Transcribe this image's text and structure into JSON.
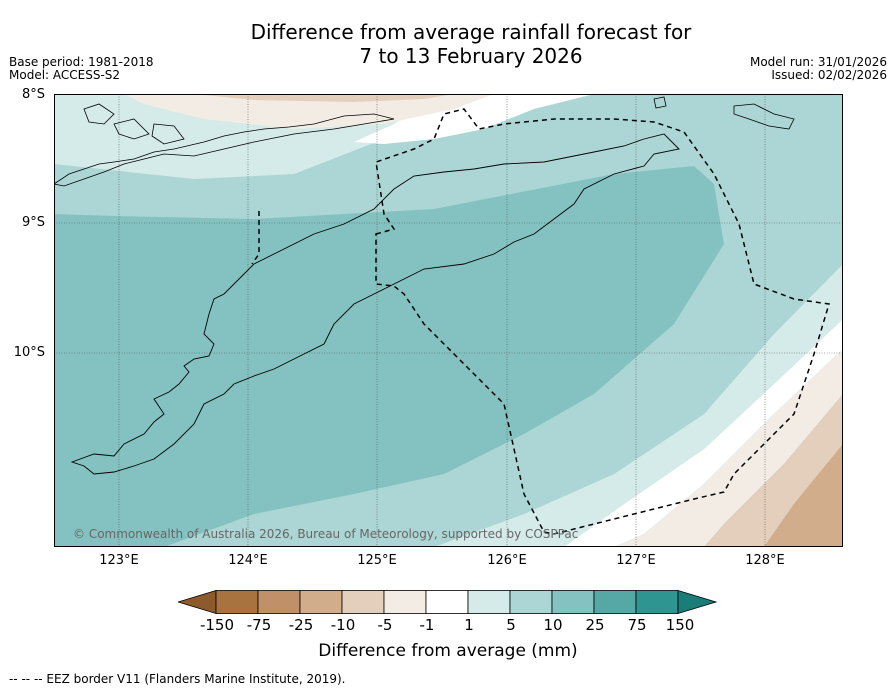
{
  "title": {
    "line1": "Difference from average rainfall forecast for",
    "line2": "7 to 13 February 2026"
  },
  "meta": {
    "base_period": "Base period: 1981-2018",
    "model": "Model: ACCESS-S2",
    "model_run": "Model run: 31/01/2026",
    "issued": "Issued: 02/02/2026"
  },
  "axes": {
    "lat_labels": [
      "8°S",
      "9°S",
      "10°S"
    ],
    "lon_labels": [
      "123°E",
      "124°E",
      "125°E",
      "126°E",
      "127°E",
      "128°E"
    ]
  },
  "colorbar": {
    "label": "Difference from average (mm)",
    "ticks": [
      "-150",
      "-75",
      "-25",
      "-10",
      "-5",
      "-1",
      "1",
      "5",
      "10",
      "25",
      "75",
      "150"
    ],
    "colors": [
      "#8c5a2b",
      "#a8733e",
      "#c09068",
      "#d1ad8c",
      "#e3cfbb",
      "#f2ece5",
      "#ffffff",
      "#d5ebe9",
      "#acd6d5",
      "#84c2c1",
      "#56a8a7",
      "#2e9590",
      "#1b7d78"
    ]
  },
  "copyright": "© Commonwealth of Australia 2026, Bureau of Meteorology, supported by COSPPac",
  "footer": "--  --  -- EEZ border V11 (Flanders Marine Institute, 2019)."
}
